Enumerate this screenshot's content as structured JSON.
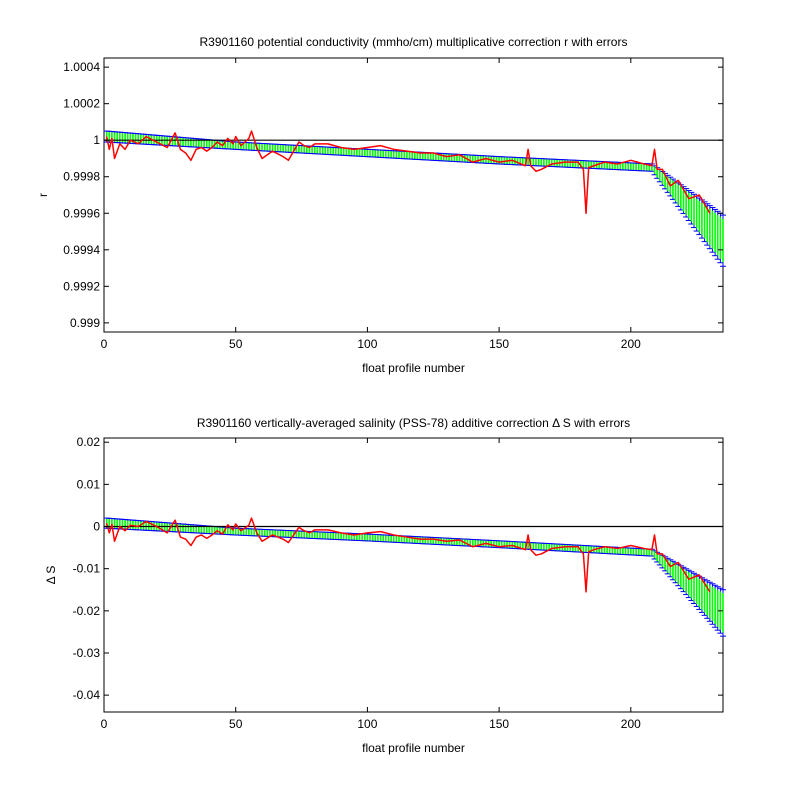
{
  "chart_data": [
    {
      "type": "line",
      "title": "R3901160 potential conductivity (mmho/cm) multiplicative correction r with errors",
      "xlabel": "float profile number",
      "ylabel": "r",
      "xlim": [
        0,
        235
      ],
      "ylim": [
        0.99895,
        1.00045
      ],
      "xticks": [
        0,
        50,
        100,
        150,
        200
      ],
      "xtick_labels": [
        "0",
        "50",
        "100",
        "150",
        "200"
      ],
      "yticks": [
        0.999,
        0.9992,
        0.9994,
        0.9996,
        0.9998,
        1,
        1.0002,
        1.0004
      ],
      "ytick_labels": [
        "0.999",
        "0.9992",
        "0.9994",
        "0.9996",
        "0.9998",
        "1",
        "1.0002",
        "1.0004"
      ],
      "reference_line": 1,
      "grid": false,
      "colors": {
        "fit": "#00ff00",
        "error_bars": "#0000ff",
        "measured": "#ff0000",
        "reference": "#000000"
      },
      "series": [
        {
          "style": "fit-with-error-bars",
          "x": [
            1,
            50,
            100,
            150,
            208,
            235
          ],
          "y": [
            1.00002,
            0.99997,
            0.99993,
            0.99989,
            0.99985,
            0.99945
          ],
          "error": [
            3e-05,
            2e-05,
            2e-05,
            2e-05,
            2e-05,
            0.00014
          ]
        },
        {
          "style": "measured",
          "x": [
            1,
            2,
            3,
            4,
            6,
            8,
            10,
            13,
            16,
            20,
            24,
            27,
            29,
            31,
            33,
            35,
            37,
            39,
            41,
            43,
            45,
            47,
            49,
            50,
            52,
            55,
            56,
            58,
            60,
            64,
            68,
            70,
            72,
            74,
            76,
            78,
            80,
            85,
            90,
            95,
            100,
            105,
            110,
            115,
            120,
            125,
            130,
            135,
            140,
            145,
            150,
            155,
            160,
            161,
            162,
            164,
            166,
            170,
            175,
            180,
            182,
            183,
            184,
            186,
            190,
            195,
            200,
            205,
            208,
            209,
            210,
            212,
            215,
            218,
            222,
            226,
            230
          ],
          "y": [
            1.00002,
            0.99995,
            1.00001,
            0.9999,
            0.99998,
            0.99995,
            1.0,
            0.99998,
            1.00002,
            0.99999,
            0.99996,
            1.00004,
            0.99995,
            0.99993,
            0.99989,
            0.99995,
            0.99996,
            0.99994,
            0.99996,
            0.99999,
            0.99997,
            1.00001,
            0.99998,
            1.00002,
            0.99997,
            1.00001,
            1.00005,
            0.99996,
            0.9999,
            0.99994,
            0.99991,
            0.99989,
            0.99994,
            0.99999,
            0.99997,
            0.99996,
            0.99998,
            0.99998,
            0.99996,
            0.99995,
            0.99996,
            0.99997,
            0.99995,
            0.99994,
            0.99993,
            0.99993,
            0.99991,
            0.99992,
            0.99988,
            0.9999,
            0.99988,
            0.99989,
            0.99986,
            0.99995,
            0.99986,
            0.99983,
            0.99984,
            0.99987,
            0.99988,
            0.99988,
            0.99984,
            0.9996,
            0.99985,
            0.99986,
            0.99988,
            0.99987,
            0.99989,
            0.99987,
            0.99986,
            0.99995,
            0.99984,
            0.99984,
            0.99975,
            0.99978,
            0.99968,
            0.9997,
            0.9996
          ]
        }
      ]
    },
    {
      "type": "line",
      "title": "R3901160 vertically-averaged salinity (PSS-78) additive correction Δ S with errors",
      "xlabel": "float profile number",
      "ylabel": "Δ S",
      "xlim": [
        0,
        235
      ],
      "ylim": [
        -0.044,
        0.021
      ],
      "xticks": [
        0,
        50,
        100,
        150,
        200
      ],
      "xtick_labels": [
        "0",
        "50",
        "100",
        "150",
        "200"
      ],
      "yticks": [
        -0.04,
        -0.03,
        -0.02,
        -0.01,
        0,
        0.01,
        0.02
      ],
      "ytick_labels": [
        "-0.04",
        "-0.03",
        "-0.02",
        "-0.01",
        "0",
        "0.01",
        "0.02"
      ],
      "reference_line": 0,
      "grid": false,
      "colors": {
        "fit": "#00ff00",
        "error_bars": "#0000ff",
        "measured": "#ff0000",
        "reference": "#000000"
      },
      "series": [
        {
          "style": "fit-with-error-bars",
          "x": [
            1,
            50,
            100,
            150,
            208,
            235
          ],
          "y": [
            0.0008,
            -0.0012,
            -0.0026,
            -0.0042,
            -0.0062,
            -0.0205
          ],
          "error": [
            0.0012,
            0.0008,
            0.0008,
            0.0008,
            0.0008,
            0.0055
          ]
        },
        {
          "style": "measured",
          "x": [
            1,
            2,
            3,
            4,
            6,
            8,
            10,
            13,
            16,
            20,
            24,
            27,
            29,
            31,
            33,
            35,
            37,
            39,
            41,
            43,
            45,
            47,
            49,
            50,
            52,
            55,
            56,
            58,
            60,
            64,
            68,
            70,
            72,
            74,
            76,
            78,
            80,
            85,
            90,
            95,
            100,
            105,
            110,
            115,
            120,
            125,
            130,
            135,
            140,
            145,
            150,
            155,
            160,
            161,
            162,
            164,
            166,
            170,
            175,
            180,
            182,
            183,
            184,
            186,
            190,
            195,
            200,
            205,
            208,
            209,
            210,
            212,
            215,
            218,
            222,
            226,
            230
          ],
          "y": [
            0.0008,
            -0.0015,
            0.0005,
            -0.0035,
            0.0,
            -0.001,
            0.0003,
            0.0,
            0.0012,
            0.0,
            -0.0015,
            0.0015,
            -0.0025,
            -0.003,
            -0.0045,
            -0.0025,
            -0.002,
            -0.0028,
            -0.002,
            -0.001,
            -0.0018,
            0.0004,
            -0.0008,
            0.0006,
            -0.001,
            0.0003,
            0.002,
            -0.0015,
            -0.0035,
            -0.002,
            -0.003,
            -0.0038,
            -0.002,
            -0.0002,
            -0.001,
            -0.0015,
            -0.0008,
            -0.0008,
            -0.0015,
            -0.002,
            -0.0015,
            -0.0012,
            -0.002,
            -0.0025,
            -0.003,
            -0.003,
            -0.0035,
            -0.0032,
            -0.0048,
            -0.004,
            -0.0048,
            -0.0045,
            -0.0055,
            -0.002,
            -0.0055,
            -0.0068,
            -0.0065,
            -0.0052,
            -0.0048,
            -0.0048,
            -0.0065,
            -0.0155,
            -0.006,
            -0.0055,
            -0.0048,
            -0.0052,
            -0.0045,
            -0.0052,
            -0.0055,
            -0.002,
            -0.0065,
            -0.0065,
            -0.0095,
            -0.0085,
            -0.0125,
            -0.0115,
            -0.0155
          ]
        }
      ]
    }
  ]
}
